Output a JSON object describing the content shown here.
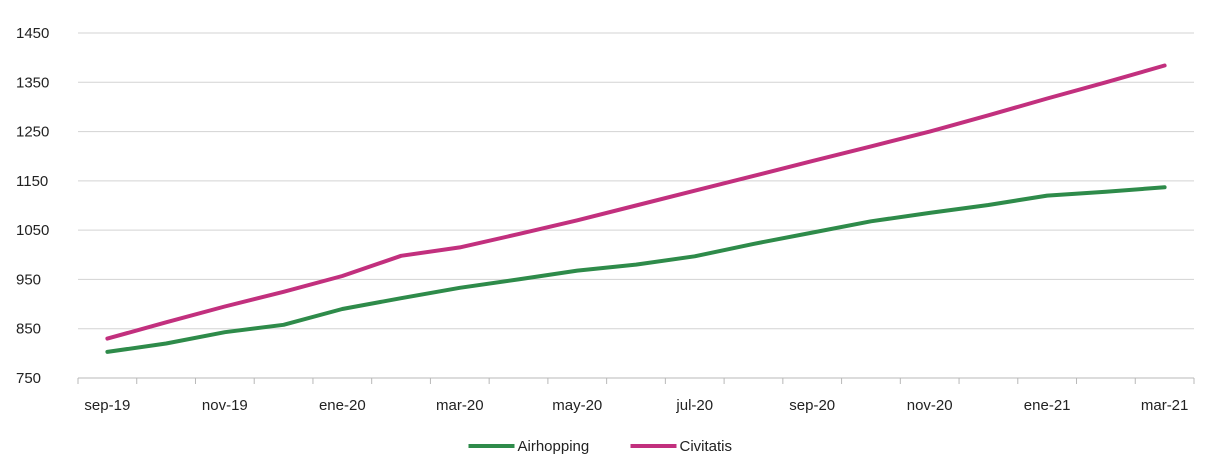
{
  "chart_data": {
    "type": "line",
    "title": "",
    "xlabel": "",
    "ylabel": "",
    "x": [
      "sep-19",
      "oct-19",
      "nov-19",
      "dic-19",
      "ene-20",
      "feb-20",
      "mar-20",
      "abr-20",
      "may-20",
      "jun-20",
      "jul-20",
      "ago-20",
      "sep-20",
      "oct-20",
      "nov-20",
      "dic-20",
      "ene-21",
      "feb-21",
      "mar-21"
    ],
    "x_tick_labels": [
      "sep-19",
      "nov-19",
      "ene-20",
      "mar-20",
      "may-20",
      "jul-20",
      "sep-20",
      "nov-20",
      "ene-21",
      "mar-21"
    ],
    "ylim": [
      750,
      1450
    ],
    "y_ticks": [
      "750",
      "850",
      "950",
      "1050",
      "1150",
      "1250",
      "1350",
      "1450"
    ],
    "grid": "horizontal",
    "legend_position": "bottom",
    "series": [
      {
        "name": "Airhopping",
        "color": "#2e8b4a",
        "values": [
          803,
          820,
          843,
          858,
          890,
          912,
          933,
          950,
          968,
          980,
          997,
          1022,
          1045,
          1068,
          1085,
          1101,
          1120,
          1128,
          1137
        ]
      },
      {
        "name": "Civitatis",
        "color": "#c2307e",
        "values": [
          830,
          863,
          895,
          925,
          957,
          998,
          1015,
          1042,
          1070,
          1100,
          1130,
          1160,
          1190,
          1220,
          1250,
          1283,
          1317,
          1350,
          1384
        ]
      }
    ]
  }
}
